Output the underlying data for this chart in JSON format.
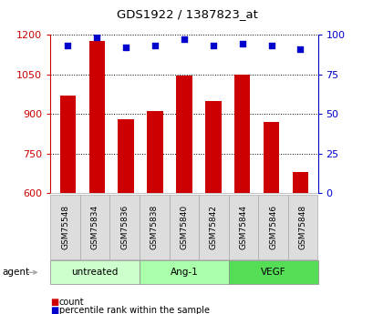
{
  "title": "GDS1922 / 1387823_at",
  "samples": [
    "GSM75548",
    "GSM75834",
    "GSM75836",
    "GSM75838",
    "GSM75840",
    "GSM75842",
    "GSM75844",
    "GSM75846",
    "GSM75848"
  ],
  "count_values": [
    970,
    1175,
    880,
    910,
    1045,
    950,
    1048,
    870,
    680
  ],
  "percentile_values": [
    93,
    98,
    92,
    93,
    97,
    93,
    94,
    93,
    91
  ],
  "groups": [
    {
      "label": "untreated",
      "indices": [
        0,
        1,
        2
      ],
      "color": "#ccffcc"
    },
    {
      "label": "Ang-1",
      "indices": [
        3,
        4,
        5
      ],
      "color": "#aaffaa"
    },
    {
      "label": "VEGF",
      "indices": [
        6,
        7,
        8
      ],
      "color": "#55dd55"
    }
  ],
  "ylim_left": [
    600,
    1200
  ],
  "ylim_right": [
    0,
    100
  ],
  "yticks_left": [
    600,
    750,
    900,
    1050,
    1200
  ],
  "yticks_right": [
    0,
    25,
    50,
    75,
    100
  ],
  "bar_color": "#cc0000",
  "dot_color": "#0000cc",
  "bg_color": "#ffffff",
  "bar_width": 0.55,
  "left_axis_color": "#cc0000",
  "right_axis_color": "#0000cc",
  "sample_bg_color": "#dddddd",
  "group_border_color": "#888888"
}
